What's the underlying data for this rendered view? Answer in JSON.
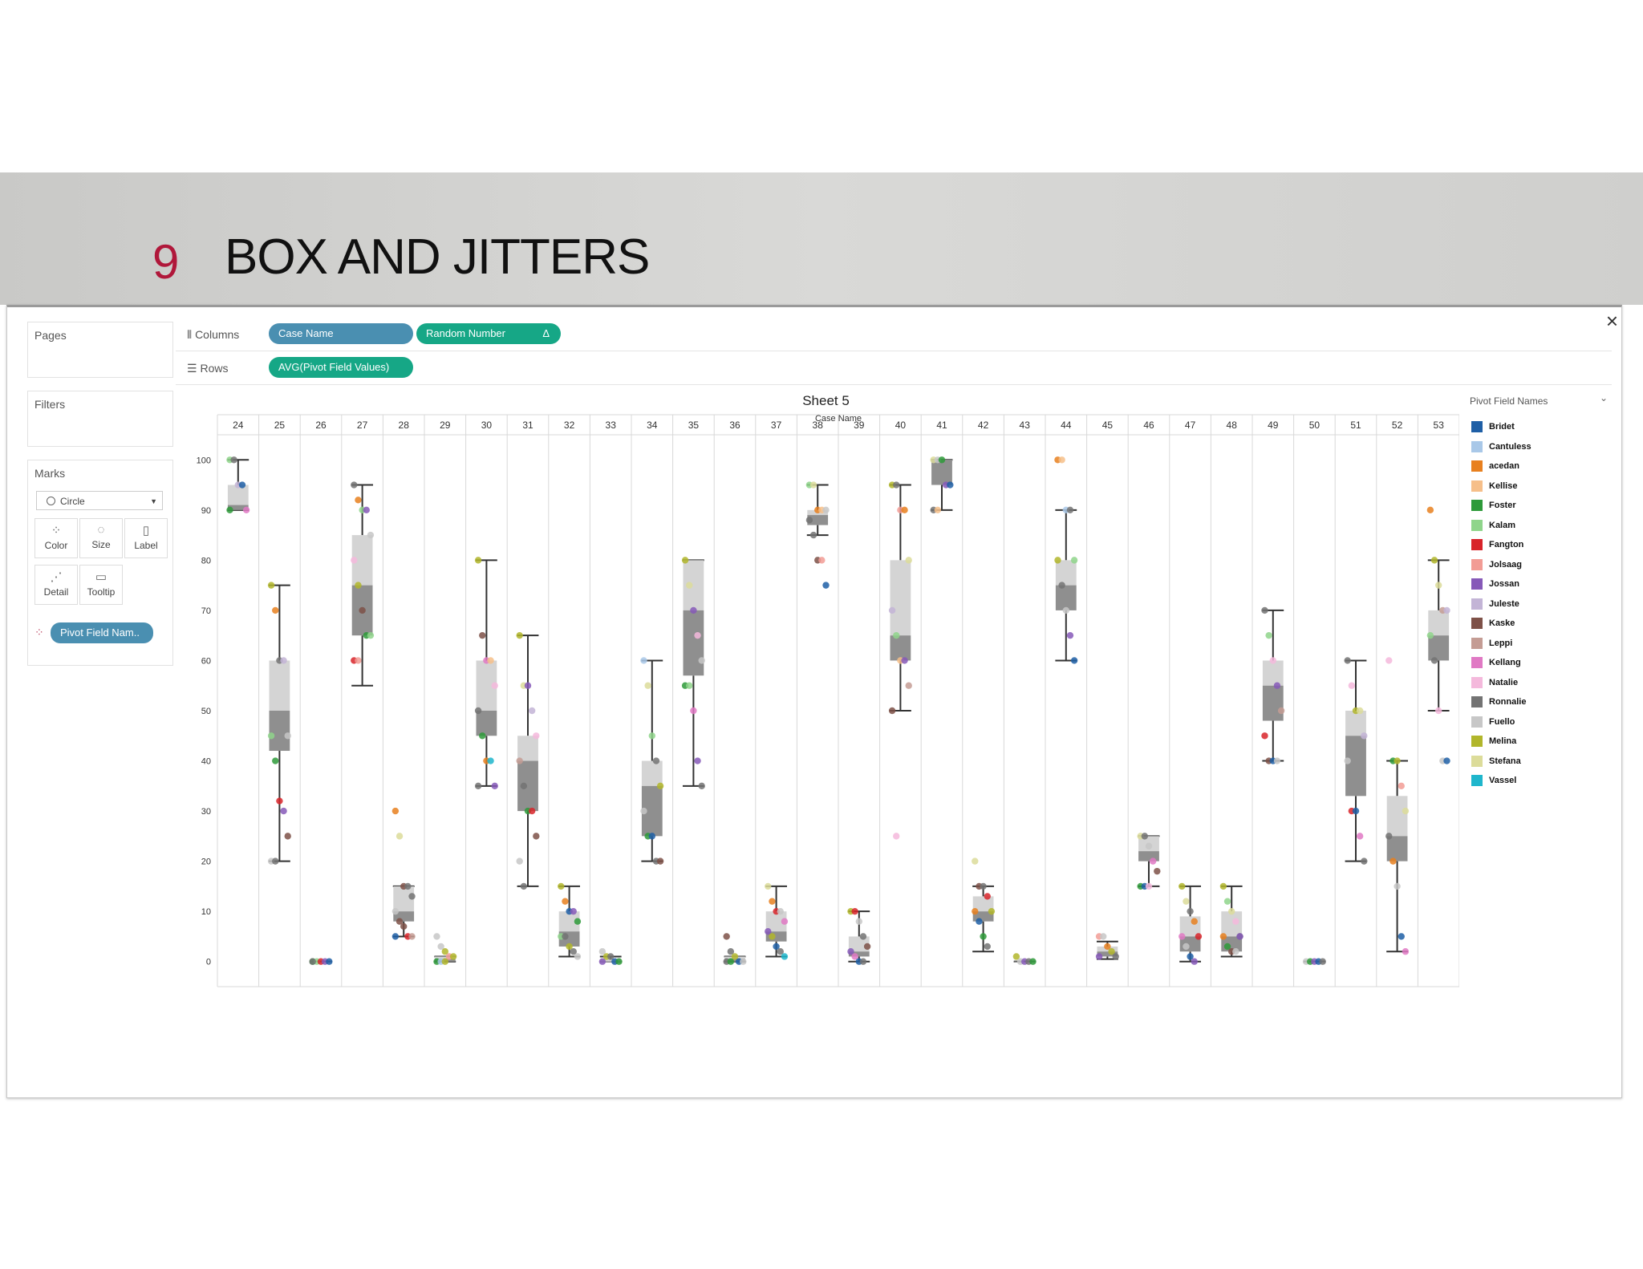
{
  "slide": {
    "number": "9",
    "title": "BOX AND JITTERS"
  },
  "window": {
    "close_glyph": "×"
  },
  "panels": {
    "pages": "Pages",
    "filters": "Filters",
    "marks": "Marks"
  },
  "shelves": {
    "columns_label": "Columns",
    "rows_label": "Rows",
    "columns_pills": [
      "Case Name",
      "Random Number"
    ],
    "rows_pills": [
      "AVG(Pivot Field Values)"
    ],
    "delta_glyph": "Δ"
  },
  "marks": {
    "type_select": "Circle",
    "buttons": [
      "Color",
      "Size",
      "Label",
      "Detail",
      "Tooltip"
    ],
    "color_pill": "Pivot Field Nam.."
  },
  "legend": {
    "title": "Pivot Field Names",
    "colors": [
      "#1f5fa6",
      "#a9c8e8",
      "#e8801f",
      "#f6bf8a",
      "#2e9a3a",
      "#8fd58b",
      "#d8242a",
      "#f29c95",
      "#8659b8",
      "#c3b4d6",
      "#7e5148",
      "#c49c94",
      "#e079c4",
      "#f4b9dc",
      "#737373",
      "#c7c7c7",
      "#b1b62b",
      "#dcdc9a",
      "#1fb6cc"
    ],
    "names": [
      "Bridet",
      "Cantuless",
      "acedan",
      "Kellise",
      "Foster",
      "Kalam",
      "Fangton",
      "Jolsaag",
      "Jossan",
      "Juleste",
      "Kaske",
      "Leppi",
      "Kellang",
      "Natalie",
      "Ronnalie",
      "Fuello",
      "Melina",
      "Stefana",
      "Vassel"
    ]
  },
  "chart_data": {
    "type": "box-and-jitter",
    "title": "Sheet 5",
    "xlabel": "Case Name",
    "ylabel": "",
    "ylim": [
      -5,
      105
    ],
    "yticks": [
      0,
      10,
      20,
      30,
      40,
      50,
      60,
      70,
      80,
      90,
      100
    ],
    "grid": false,
    "legend_position": "right",
    "categories": [
      "24",
      "25",
      "26",
      "27",
      "28",
      "29",
      "30",
      "31",
      "32",
      "33",
      "34",
      "35",
      "36",
      "37",
      "38",
      "39",
      "40",
      "41",
      "42",
      "43",
      "44",
      "45",
      "46",
      "47",
      "48",
      "49",
      "50",
      "51",
      "52",
      "53"
    ],
    "boxes": [
      {
        "min": 90,
        "q1": 90,
        "median": 91,
        "q3": 95,
        "max": 100
      },
      {
        "min": 20,
        "q1": 42,
        "median": 50,
        "q3": 60,
        "max": 75
      },
      {
        "min": 0,
        "q1": 0,
        "median": 0,
        "q3": 0,
        "max": 0
      },
      {
        "min": 55,
        "q1": 65,
        "median": 75,
        "q3": 85,
        "max": 95
      },
      {
        "min": 5,
        "q1": 8,
        "median": 10,
        "q3": 15,
        "max": 15
      },
      {
        "min": 0,
        "q1": 0,
        "median": 0.5,
        "q3": 1,
        "max": 1
      },
      {
        "min": 35,
        "q1": 45,
        "median": 50,
        "q3": 60,
        "max": 80
      },
      {
        "min": 15,
        "q1": 30,
        "median": 40,
        "q3": 45,
        "max": 65
      },
      {
        "min": 1,
        "q1": 3,
        "median": 6,
        "q3": 10,
        "max": 15
      },
      {
        "min": 0,
        "q1": 0,
        "median": 0,
        "q3": 0.5,
        "max": 1
      },
      {
        "min": 20,
        "q1": 25,
        "median": 35,
        "q3": 40,
        "max": 60
      },
      {
        "min": 35,
        "q1": 57,
        "median": 70,
        "q3": 80,
        "max": 80
      },
      {
        "min": 0,
        "q1": 0,
        "median": 0.5,
        "q3": 1,
        "max": 1
      },
      {
        "min": 1,
        "q1": 4,
        "median": 6,
        "q3": 10,
        "max": 15
      },
      {
        "min": 85,
        "q1": 87,
        "median": 89,
        "q3": 90,
        "max": 95
      },
      {
        "min": 0,
        "q1": 1,
        "median": 2,
        "q3": 5,
        "max": 10
      },
      {
        "min": 50,
        "q1": 60,
        "median": 65,
        "q3": 80,
        "max": 95
      },
      {
        "min": 90,
        "q1": 95,
        "median": 100,
        "q3": 100,
        "max": 100
      },
      {
        "min": 2,
        "q1": 8,
        "median": 10,
        "q3": 13,
        "max": 15
      },
      {
        "min": 0,
        "q1": 0,
        "median": 0,
        "q3": 0,
        "max": 0
      },
      {
        "min": 60,
        "q1": 70,
        "median": 75,
        "q3": 80,
        "max": 90
      },
      {
        "min": 0.5,
        "q1": 1,
        "median": 2,
        "q3": 3,
        "max": 4
      },
      {
        "min": 15,
        "q1": 20,
        "median": 22,
        "q3": 25,
        "max": 25
      },
      {
        "min": 0,
        "q1": 2,
        "median": 5,
        "q3": 9,
        "max": 15
      },
      {
        "min": 1,
        "q1": 2,
        "median": 5,
        "q3": 10,
        "max": 15
      },
      {
        "min": 40,
        "q1": 48,
        "median": 55,
        "q3": 60,
        "max": 70
      },
      {
        "min": 0,
        "q1": 0,
        "median": 0,
        "q3": 0,
        "max": 0
      },
      {
        "min": 20,
        "q1": 33,
        "median": 45,
        "q3": 50,
        "max": 60
      },
      {
        "min": 2,
        "q1": 20,
        "median": 25,
        "q3": 33,
        "max": 40
      },
      {
        "min": 50,
        "q1": 60,
        "median": 65,
        "q3": 70,
        "max": 80
      }
    ],
    "points": [
      [
        [
          100,
          5
        ],
        [
          100,
          14
        ],
        [
          95,
          9
        ],
        [
          95,
          0
        ],
        [
          90,
          12
        ],
        [
          90,
          4
        ]
      ],
      [
        [
          75,
          16
        ],
        [
          70,
          2
        ],
        [
          60,
          14
        ],
        [
          60,
          9
        ],
        [
          45,
          15
        ],
        [
          45,
          5
        ],
        [
          40,
          4
        ],
        [
          32,
          6
        ],
        [
          30,
          8
        ],
        [
          25,
          10
        ],
        [
          20,
          15
        ],
        [
          20,
          14
        ]
      ],
      [
        [
          0,
          4
        ],
        [
          0,
          5
        ],
        [
          0,
          6
        ],
        [
          0,
          8
        ],
        [
          0,
          0
        ],
        [
          0,
          14
        ]
      ],
      [
        [
          95,
          14
        ],
        [
          92,
          2
        ],
        [
          90,
          5
        ],
        [
          90,
          8
        ],
        [
          85,
          15
        ],
        [
          80,
          13
        ],
        [
          75,
          16
        ],
        [
          70,
          10
        ],
        [
          65,
          4
        ],
        [
          65,
          5
        ],
        [
          60,
          6
        ],
        [
          60,
          7
        ]
      ],
      [
        [
          30,
          2
        ],
        [
          25,
          17
        ],
        [
          15,
          10
        ],
        [
          15,
          14
        ],
        [
          13,
          14
        ],
        [
          10,
          15
        ],
        [
          8,
          10
        ],
        [
          7,
          10
        ],
        [
          5,
          6
        ],
        [
          5,
          11
        ],
        [
          5,
          0
        ]
      ],
      [
        [
          5,
          15
        ],
        [
          3,
          15
        ],
        [
          2,
          16
        ],
        [
          1,
          7
        ],
        [
          1,
          16
        ],
        [
          0,
          4
        ],
        [
          0,
          1
        ],
        [
          0,
          16
        ]
      ],
      [
        [
          80,
          16
        ],
        [
          65,
          10
        ],
        [
          60,
          12
        ],
        [
          60,
          3
        ],
        [
          55,
          13
        ],
        [
          50,
          14
        ],
        [
          45,
          4
        ],
        [
          40,
          2
        ],
        [
          40,
          18
        ],
        [
          35,
          8
        ],
        [
          35,
          14
        ]
      ],
      [
        [
          65,
          16
        ],
        [
          55,
          17
        ],
        [
          55,
          8
        ],
        [
          50,
          9
        ],
        [
          45,
          13
        ],
        [
          40,
          11
        ],
        [
          35,
          14
        ],
        [
          30,
          4
        ],
        [
          30,
          6
        ],
        [
          25,
          10
        ],
        [
          20,
          15
        ],
        [
          15,
          14
        ]
      ],
      [
        [
          15,
          16
        ],
        [
          12,
          2
        ],
        [
          10,
          0
        ],
        [
          10,
          8
        ],
        [
          8,
          4
        ],
        [
          5,
          5
        ],
        [
          5,
          14
        ],
        [
          3,
          16
        ],
        [
          2,
          14
        ],
        [
          1,
          15
        ]
      ],
      [
        [
          2,
          15
        ],
        [
          1,
          16
        ],
        [
          1,
          14
        ],
        [
          0,
          0
        ],
        [
          0,
          4
        ],
        [
          0,
          8
        ]
      ],
      [
        [
          60,
          1
        ],
        [
          55,
          17
        ],
        [
          45,
          5
        ],
        [
          40,
          14
        ],
        [
          35,
          16
        ],
        [
          30,
          15
        ],
        [
          25,
          4
        ],
        [
          25,
          0
        ],
        [
          20,
          14
        ],
        [
          20,
          10
        ]
      ],
      [
        [
          80,
          16
        ],
        [
          75,
          17
        ],
        [
          70,
          8
        ],
        [
          65,
          13
        ],
        [
          60,
          15
        ],
        [
          55,
          4
        ],
        [
          55,
          5
        ],
        [
          50,
          12
        ],
        [
          40,
          8
        ],
        [
          35,
          14
        ]
      ],
      [
        [
          5,
          10
        ],
        [
          2,
          14
        ],
        [
          1,
          16
        ],
        [
          0,
          0
        ],
        [
          0,
          15
        ],
        [
          0,
          14
        ],
        [
          0,
          4
        ]
      ],
      [
        [
          15,
          17
        ],
        [
          12,
          2
        ],
        [
          10,
          6
        ],
        [
          10,
          15
        ],
        [
          8,
          12
        ],
        [
          6,
          8
        ],
        [
          5,
          16
        ],
        [
          3,
          0
        ],
        [
          2,
          14
        ],
        [
          1,
          18
        ]
      ],
      [
        [
          95,
          5
        ],
        [
          95,
          17
        ],
        [
          90,
          2
        ],
        [
          90,
          3
        ],
        [
          90,
          15
        ],
        [
          88,
          14
        ],
        [
          85,
          14
        ],
        [
          80,
          10
        ],
        [
          80,
          7
        ],
        [
          75,
          0
        ]
      ],
      [
        [
          10,
          16
        ],
        [
          10,
          6
        ],
        [
          8,
          15
        ],
        [
          5,
          14
        ],
        [
          3,
          10
        ],
        [
          2,
          8
        ],
        [
          1,
          12
        ],
        [
          0,
          0
        ],
        [
          0,
          14
        ]
      ],
      [
        [
          95,
          16
        ],
        [
          95,
          14
        ],
        [
          90,
          7
        ],
        [
          90,
          2
        ],
        [
          80,
          17
        ],
        [
          70,
          9
        ],
        [
          65,
          5
        ],
        [
          60,
          3
        ],
        [
          60,
          8
        ],
        [
          55,
          11
        ],
        [
          50,
          10
        ],
        [
          25,
          13
        ]
      ],
      [
        [
          100,
          17
        ],
        [
          100,
          15
        ],
        [
          100,
          4
        ],
        [
          95,
          8
        ],
        [
          95,
          0
        ],
        [
          90,
          14
        ],
        [
          90,
          3
        ]
      ],
      [
        [
          20,
          17
        ],
        [
          15,
          10
        ],
        [
          15,
          14
        ],
        [
          13,
          6
        ],
        [
          10,
          16
        ],
        [
          10,
          2
        ],
        [
          8,
          0
        ],
        [
          5,
          4
        ],
        [
          3,
          14
        ]
      ],
      [
        [
          1,
          16
        ],
        [
          0,
          15
        ],
        [
          0,
          8
        ],
        [
          0,
          14
        ],
        [
          0,
          4
        ]
      ],
      [
        [
          100,
          2
        ],
        [
          100,
          3
        ],
        [
          90,
          1
        ],
        [
          90,
          14
        ],
        [
          80,
          5
        ],
        [
          80,
          16
        ],
        [
          75,
          14
        ],
        [
          70,
          15
        ],
        [
          65,
          8
        ],
        [
          60,
          0
        ]
      ],
      [
        [
          5,
          7
        ],
        [
          5,
          15
        ],
        [
          3,
          2
        ],
        [
          2,
          16
        ],
        [
          1,
          14
        ],
        [
          1,
          8
        ]
      ],
      [
        [
          25,
          17
        ],
        [
          25,
          14
        ],
        [
          23,
          15
        ],
        [
          20,
          12
        ],
        [
          18,
          10
        ],
        [
          15,
          4
        ],
        [
          15,
          0
        ],
        [
          15,
          13
        ]
      ],
      [
        [
          15,
          16
        ],
        [
          12,
          17
        ],
        [
          10,
          14
        ],
        [
          8,
          2
        ],
        [
          5,
          6
        ],
        [
          5,
          12
        ],
        [
          3,
          15
        ],
        [
          1,
          0
        ],
        [
          0,
          8
        ]
      ],
      [
        [
          15,
          16
        ],
        [
          12,
          5
        ],
        [
          10,
          17
        ],
        [
          8,
          13
        ],
        [
          5,
          14
        ],
        [
          5,
          2
        ],
        [
          3,
          4
        ],
        [
          2,
          10
        ],
        [
          2,
          15
        ],
        [
          5,
          8
        ]
      ],
      [
        [
          70,
          14
        ],
        [
          65,
          5
        ],
        [
          60,
          13
        ],
        [
          55,
          8
        ],
        [
          50,
          11
        ],
        [
          45,
          6
        ],
        [
          40,
          10
        ],
        [
          40,
          0
        ],
        [
          40,
          15
        ]
      ],
      [
        [
          0,
          15
        ],
        [
          0,
          4
        ],
        [
          0,
          8
        ],
        [
          0,
          0
        ],
        [
          0,
          14
        ]
      ],
      [
        [
          60,
          14
        ],
        [
          55,
          13
        ],
        [
          50,
          16
        ],
        [
          50,
          17
        ],
        [
          45,
          9
        ],
        [
          40,
          15
        ],
        [
          30,
          6
        ],
        [
          30,
          0
        ],
        [
          25,
          12
        ],
        [
          20,
          14
        ]
      ],
      [
        [
          60,
          13
        ],
        [
          40,
          4
        ],
        [
          40,
          16
        ],
        [
          35,
          7
        ],
        [
          30,
          17
        ],
        [
          25,
          14
        ],
        [
          20,
          2
        ],
        [
          15,
          15
        ],
        [
          5,
          0
        ],
        [
          2,
          12
        ]
      ],
      [
        [
          90,
          2
        ],
        [
          80,
          16
        ],
        [
          75,
          17
        ],
        [
          70,
          11
        ],
        [
          70,
          9
        ],
        [
          65,
          5
        ],
        [
          60,
          14
        ],
        [
          50,
          13
        ],
        [
          40,
          15
        ],
        [
          40,
          0
        ]
      ]
    ]
  }
}
